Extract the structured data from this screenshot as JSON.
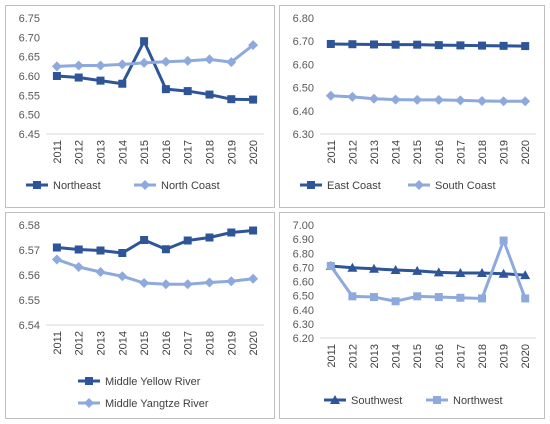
{
  "chart_data": [
    {
      "type": "line",
      "x": [
        "2011",
        "2012",
        "2013",
        "2014",
        "2015",
        "2016",
        "2017",
        "2018",
        "2019",
        "2020"
      ],
      "ylim": [
        6.45,
        6.75
      ],
      "yticks": [
        "6.45",
        "6.50",
        "6.55",
        "6.60",
        "6.65",
        "6.70",
        "6.75"
      ],
      "grid": false,
      "legend_position": "bottom",
      "series": [
        {
          "name": "Northeast",
          "color": "#2e5597",
          "marker": "square",
          "values": [
            6.6,
            6.596,
            6.588,
            6.58,
            6.69,
            6.566,
            6.561,
            6.552,
            6.54,
            6.539
          ]
        },
        {
          "name": "North Coast",
          "color": "#8ea9db",
          "marker": "diamond",
          "values": [
            6.625,
            6.627,
            6.627,
            6.63,
            6.634,
            6.637,
            6.639,
            6.643,
            6.636,
            6.68
          ]
        }
      ]
    },
    {
      "type": "line",
      "x": [
        "2011",
        "2012",
        "2013",
        "2014",
        "2015",
        "2016",
        "2017",
        "2018",
        "2019",
        "2020"
      ],
      "ylim": [
        6.3,
        6.8
      ],
      "yticks": [
        "6.30",
        "6.40",
        "6.50",
        "6.60",
        "6.70",
        "6.80"
      ],
      "grid": false,
      "legend_position": "bottom",
      "series": [
        {
          "name": "East Coast",
          "color": "#2e5597",
          "marker": "square",
          "values": [
            6.688,
            6.687,
            6.686,
            6.685,
            6.685,
            6.683,
            6.682,
            6.681,
            6.68,
            6.679
          ]
        },
        {
          "name": "South Coast",
          "color": "#8ea9db",
          "marker": "diamond",
          "values": [
            6.465,
            6.46,
            6.452,
            6.448,
            6.447,
            6.447,
            6.445,
            6.442,
            6.441,
            6.441
          ]
        }
      ]
    },
    {
      "type": "line",
      "x": [
        "2011",
        "2012",
        "2013",
        "2014",
        "2015",
        "2016",
        "2017",
        "2018",
        "2019",
        "2020"
      ],
      "ylim": [
        6.54,
        6.58
      ],
      "yticks": [
        "6.54",
        "6.55",
        "6.56",
        "6.57",
        "6.58"
      ],
      "grid": false,
      "legend_position": "bottom",
      "series": [
        {
          "name": "Middle Yellow River",
          "color": "#2e5597",
          "marker": "square",
          "values": [
            6.571,
            6.5702,
            6.5698,
            6.5688,
            6.574,
            6.5703,
            6.5738,
            6.575,
            6.577,
            6.5778
          ]
        },
        {
          "name": "Middle Yangtze River",
          "color": "#8ea9db",
          "marker": "diamond",
          "values": [
            6.5662,
            6.5632,
            6.5612,
            6.5595,
            6.5568,
            6.5563,
            6.5563,
            6.557,
            6.5575,
            6.5585
          ]
        }
      ]
    },
    {
      "type": "line",
      "x": [
        "2011",
        "2012",
        "2013",
        "2014",
        "2015",
        "2016",
        "2017",
        "2018",
        "2019",
        "2020"
      ],
      "ylim": [
        6.2,
        7.0
      ],
      "yticks": [
        "6.20",
        "6.30",
        "6.40",
        "6.50",
        "6.60",
        "6.70",
        "6.80",
        "6.90",
        "7.00"
      ],
      "grid": false,
      "legend_position": "bottom",
      "series": [
        {
          "name": "Southwest",
          "color": "#2e5597",
          "marker": "triangle",
          "values": [
            6.71,
            6.697,
            6.69,
            6.681,
            6.675,
            6.665,
            6.66,
            6.66,
            6.655,
            6.645
          ]
        },
        {
          "name": "Northwest",
          "color": "#8ea9db",
          "marker": "square",
          "values": [
            6.71,
            6.495,
            6.49,
            6.46,
            6.495,
            6.49,
            6.485,
            6.48,
            6.89,
            6.48
          ]
        }
      ]
    }
  ]
}
